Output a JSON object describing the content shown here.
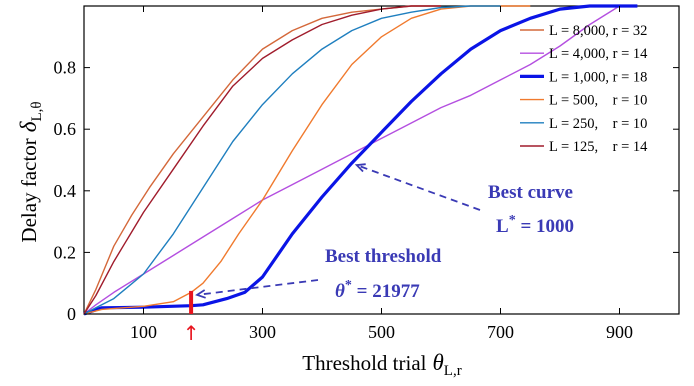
{
  "chart_data": {
    "type": "line",
    "xlabel": "Threshold trial",
    "xlabel_symbol": "θ",
    "xlabel_sub": "L,r",
    "ylabel": "Delay factor",
    "ylabel_symbol": "δ",
    "ylabel_sub": "L,θ",
    "xlim": [
      0,
      1000
    ],
    "ylim": [
      0,
      1
    ],
    "xticks": [
      100,
      300,
      500,
      700,
      900
    ],
    "yticks": [
      0,
      0.2,
      0.4,
      0.6,
      0.8
    ],
    "ytick_labels": [
      "0",
      "0.2",
      "0.4",
      "0.6",
      "0.8"
    ],
    "grid": false,
    "legend_position": "right",
    "series": [
      {
        "name": "L = 8,000, r = 32",
        "color": "#d4683a",
        "x": [
          0,
          20,
          50,
          80,
          110,
          150,
          200,
          250,
          300,
          350,
          400,
          450,
          500,
          550,
          600
        ],
        "y": [
          0,
          0.08,
          0.22,
          0.32,
          0.41,
          0.52,
          0.64,
          0.76,
          0.86,
          0.92,
          0.96,
          0.98,
          0.99,
          1.0,
          1.0
        ]
      },
      {
        "name": "L = 4,000, r = 14",
        "color": "#b44fe0",
        "x": [
          0,
          20,
          50,
          100,
          150,
          200,
          250,
          300,
          350,
          400,
          450,
          500,
          550,
          600,
          650,
          700,
          750,
          800,
          850,
          900
        ],
        "y": [
          0,
          0.03,
          0.07,
          0.13,
          0.19,
          0.25,
          0.31,
          0.37,
          0.42,
          0.47,
          0.52,
          0.57,
          0.62,
          0.67,
          0.71,
          0.76,
          0.81,
          0.87,
          0.94,
          1.0
        ]
      },
      {
        "name": "L = 1,000, r = 18",
        "color": "#0a14e6",
        "bold": true,
        "x": [
          0,
          30,
          100,
          180,
          200,
          240,
          270,
          300,
          350,
          400,
          450,
          500,
          550,
          600,
          650,
          700,
          750,
          800,
          850,
          900,
          930
        ],
        "y": [
          0,
          0.02,
          0.022,
          0.027,
          0.03,
          0.05,
          0.07,
          0.12,
          0.26,
          0.38,
          0.49,
          0.59,
          0.69,
          0.78,
          0.86,
          0.92,
          0.96,
          0.99,
          1.0,
          1.0,
          1.0
        ]
      },
      {
        "name": "L = 500,    r = 10",
        "color": "#f07a2e",
        "x": [
          0,
          30,
          100,
          150,
          180,
          200,
          230,
          260,
          300,
          350,
          400,
          450,
          500,
          550,
          600,
          650,
          700,
          750
        ],
        "y": [
          0,
          0.015,
          0.025,
          0.04,
          0.07,
          0.1,
          0.17,
          0.26,
          0.37,
          0.53,
          0.68,
          0.81,
          0.9,
          0.96,
          0.99,
          1.0,
          1.0,
          1.0
        ]
      },
      {
        "name": "L = 250,    r = 10",
        "color": "#1f7fbf",
        "x": [
          0,
          20,
          50,
          100,
          150,
          200,
          250,
          300,
          350,
          400,
          450,
          500,
          550,
          600,
          650,
          700
        ],
        "y": [
          0,
          0.02,
          0.05,
          0.13,
          0.26,
          0.41,
          0.56,
          0.68,
          0.78,
          0.86,
          0.92,
          0.96,
          0.98,
          0.995,
          1.0,
          1.0
        ]
      },
      {
        "name": "L = 125,    r = 14",
        "color": "#a01c2c",
        "x": [
          0,
          20,
          50,
          100,
          150,
          200,
          250,
          300,
          350,
          400,
          450,
          500,
          550,
          600
        ],
        "y": [
          0,
          0.06,
          0.17,
          0.33,
          0.47,
          0.61,
          0.74,
          0.83,
          0.89,
          0.94,
          0.97,
          0.99,
          1.0,
          1.0
        ]
      }
    ],
    "threshold_marker": {
      "x": 180,
      "y_top": 0.075,
      "color": "#e8141e",
      "arrow": "↑"
    },
    "annotations": [
      {
        "id": "best-curve",
        "lines": [
          "Best curve",
          "L* = 1000"
        ],
        "line1": "Best curve",
        "line2_base": "L",
        "line2_sup": "*",
        "line2_rest": " = 1000",
        "arrow_to": {
          "x": 450,
          "y": 0.49
        }
      },
      {
        "id": "best-threshold",
        "line1": "Best threshold",
        "line2_base": "θ",
        "line2_sup": "*",
        "line2_rest": " = 21977",
        "arrow_to": {
          "x": 180,
          "y": 0.075
        }
      }
    ]
  }
}
